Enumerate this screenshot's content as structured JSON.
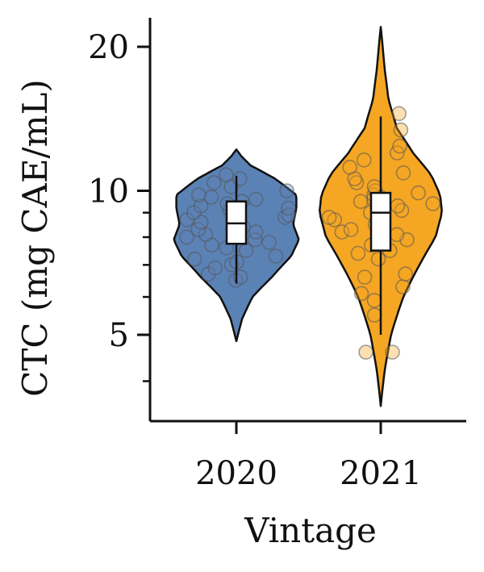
{
  "chart_data": {
    "type": "violin",
    "xlabel": "Vintage",
    "ylabel": "CTC (mg CAE/mL)",
    "yscale": "log",
    "ylim": [
      3.3,
      23
    ],
    "yticks_major": [
      5,
      10,
      20
    ],
    "yticks_minor": [
      4,
      6,
      7,
      8,
      9,
      30
    ],
    "categories": [
      "2020",
      "2021"
    ],
    "grid": false,
    "legend": "none",
    "series": [
      {
        "category": "2020",
        "color": "#5b82b5",
        "violin_range": [
          4.85,
          12.2
        ],
        "violin_profile": [
          [
            4.85,
            0.0
          ],
          [
            5.4,
            0.09
          ],
          [
            6.0,
            0.25
          ],
          [
            6.6,
            0.55
          ],
          [
            7.3,
            0.85
          ],
          [
            7.9,
            0.97
          ],
          [
            8.5,
            0.88
          ],
          [
            9.2,
            0.93
          ],
          [
            9.8,
            0.93
          ],
          [
            10.6,
            0.6
          ],
          [
            11.3,
            0.22
          ],
          [
            11.8,
            0.08
          ],
          [
            12.2,
            0.0
          ]
        ],
        "box": {
          "q1": 7.75,
          "median": 8.55,
          "q3": 9.5,
          "whisker_low": 6.4,
          "whisker_high": 10.75
        },
        "points": [
          6.5,
          6.6,
          6.7,
          6.9,
          7.0,
          7.1,
          7.2,
          7.3,
          7.5,
          7.6,
          7.7,
          7.8,
          7.9,
          8.0,
          8.0,
          8.1,
          8.2,
          8.3,
          8.4,
          8.5,
          8.6,
          8.7,
          8.8,
          8.9,
          9.0,
          9.1,
          9.2,
          9.3,
          9.4,
          9.5,
          9.6,
          9.7,
          9.8,
          10.0,
          10.2,
          10.4,
          10.6,
          10.8
        ]
      },
      {
        "category": "2021",
        "color": "#f5a623",
        "violin_range": [
          3.55,
          22.0
        ],
        "violin_profile": [
          [
            3.55,
            0.0
          ],
          [
            4.2,
            0.06
          ],
          [
            5.0,
            0.16
          ],
          [
            6.0,
            0.35
          ],
          [
            7.0,
            0.6
          ],
          [
            8.0,
            0.85
          ],
          [
            9.0,
            0.95
          ],
          [
            9.8,
            0.92
          ],
          [
            10.8,
            0.78
          ],
          [
            12.0,
            0.5
          ],
          [
            13.5,
            0.25
          ],
          [
            15.5,
            0.12
          ],
          [
            18.0,
            0.06
          ],
          [
            22.0,
            0.0
          ]
        ],
        "box": {
          "q1": 7.5,
          "median": 9.0,
          "q3": 9.9,
          "whisker_low": 5.0,
          "whisker_high": 14.3
        },
        "points": [
          4.6,
          4.6,
          5.5,
          5.9,
          6.1,
          6.3,
          6.6,
          6.7,
          7.2,
          7.4,
          7.5,
          7.7,
          7.9,
          8.1,
          8.2,
          8.3,
          8.5,
          8.7,
          8.8,
          9.0,
          9.1,
          9.3,
          9.4,
          9.5,
          9.6,
          9.7,
          9.8,
          9.9,
          10.0,
          10.2,
          10.4,
          10.6,
          10.9,
          11.2,
          11.6,
          12.0,
          12.4,
          13.4,
          14.5
        ]
      }
    ]
  }
}
